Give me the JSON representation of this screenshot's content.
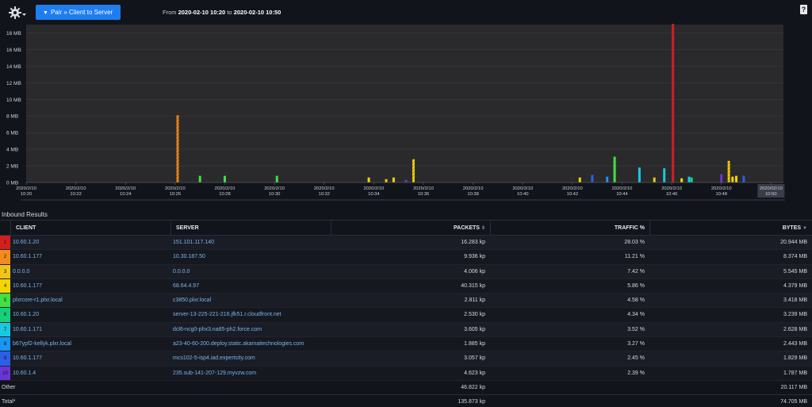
{
  "toolbar": {
    "gear_icon": "gear-icon",
    "pair_label": "Pair » Client to Server",
    "range_from_label": "From",
    "range_from": "2020-02-10 10:20",
    "range_to_label": "to",
    "range_to": "2020-02-10 10:50",
    "help_label": "?"
  },
  "chart_data": {
    "type": "bar",
    "title": "",
    "xlabel": "",
    "ylabel": "",
    "ylim": [
      0,
      19
    ],
    "yticks": [
      "18 MB",
      "16 MB",
      "14 MB",
      "12 MB",
      "10 MB",
      "8 MB",
      "6 MB",
      "4 MB",
      "2 MB",
      "0 MB"
    ],
    "ytick_values": [
      18,
      16,
      14,
      12,
      10,
      8,
      6,
      4,
      2,
      0
    ],
    "xlim": [
      0,
      30.5
    ],
    "xticks": [
      {
        "t": 0,
        "d": "2020/2/10",
        "h": "10:20"
      },
      {
        "t": 2,
        "d": "2020/2/10",
        "h": "10:22"
      },
      {
        "t": 4,
        "d": "2020/2/10",
        "h": "10:24"
      },
      {
        "t": 6,
        "d": "2020/2/10",
        "h": "10:26"
      },
      {
        "t": 8,
        "d": "2020/2/10",
        "h": "10:28"
      },
      {
        "t": 10,
        "d": "2020/2/10",
        "h": "10:30"
      },
      {
        "t": 12,
        "d": "2020/2/10",
        "h": "10:32"
      },
      {
        "t": 14,
        "d": "2020/2/10",
        "h": "10:34"
      },
      {
        "t": 16,
        "d": "2020/2/10",
        "h": "10:36"
      },
      {
        "t": 18,
        "d": "2020/2/10",
        "h": "10:38"
      },
      {
        "t": 20,
        "d": "2020/2/10",
        "h": "10:40"
      },
      {
        "t": 22,
        "d": "2020/2/10",
        "h": "10:42"
      },
      {
        "t": 24,
        "d": "2020/2/10",
        "h": "10:44"
      },
      {
        "t": 26,
        "d": "2020/2/10",
        "h": "10:46"
      },
      {
        "t": 28,
        "d": "2020/2/10",
        "h": "10:48"
      },
      {
        "t": 30,
        "d": "2020/02/10",
        "h": "10:50",
        "hl": true
      }
    ],
    "bars": [
      {
        "t": 6.1,
        "v": 8.1,
        "c": 2,
        "hatch": true
      },
      {
        "t": 7.0,
        "v": 0.8,
        "c": 5
      },
      {
        "t": 8.0,
        "v": 0.8,
        "c": 5
      },
      {
        "t": 10.1,
        "v": 0.8,
        "c": 5
      },
      {
        "t": 13.8,
        "v": 0.6,
        "c": 4
      },
      {
        "t": 14.5,
        "v": 0.4,
        "c": 3
      },
      {
        "t": 14.8,
        "v": 0.6,
        "c": 4
      },
      {
        "t": 15.3,
        "v": 0.3,
        "c": 10
      },
      {
        "t": 15.6,
        "v": 2.8,
        "c": 4,
        "hatch": true
      },
      {
        "t": 22.3,
        "v": 0.6,
        "c": 4
      },
      {
        "t": 22.8,
        "v": 0.9,
        "c": 9
      },
      {
        "t": 23.4,
        "v": 0.7,
        "c": 8
      },
      {
        "t": 23.7,
        "v": 3.1,
        "c": 5
      },
      {
        "t": 24.7,
        "v": 1.8,
        "c": 7
      },
      {
        "t": 25.3,
        "v": 0.6,
        "c": 3
      },
      {
        "t": 25.7,
        "v": 1.7,
        "c": 7
      },
      {
        "t": 26.05,
        "v": 19.5,
        "c": 1
      },
      {
        "t": 26.4,
        "v": 0.5,
        "c": 4
      },
      {
        "t": 26.7,
        "v": 0.7,
        "c": 7
      },
      {
        "t": 26.8,
        "v": 0.6,
        "c": 6
      },
      {
        "t": 28.0,
        "v": 1.0,
        "c": 10
      },
      {
        "t": 28.3,
        "v": 2.6,
        "c": 4,
        "hatch": true
      },
      {
        "t": 28.45,
        "v": 0.7,
        "c": 4
      },
      {
        "t": 28.6,
        "v": 0.8,
        "c": 4
      },
      {
        "t": 28.9,
        "v": 0.8,
        "c": 9
      }
    ]
  },
  "results": {
    "title": "Inbound Results",
    "columns": {
      "client": "CLIENT",
      "server": "SERVER",
      "packets": "PACKETS",
      "traffic": "TRAFFIC %",
      "bytes": "BYTES"
    },
    "sort_icons": {
      "packets": "sort-both-icon",
      "traffic": "sort-both-icon",
      "bytes": "sort-desc-icon"
    },
    "colors": [
      "#d11f1f",
      "#f28a1c",
      "#f0c419",
      "#f5d400",
      "#43e043",
      "#18d07a",
      "#18c9e0",
      "#1896f0",
      "#2c5ee8",
      "#6a35d6"
    ],
    "rows": [
      {
        "n": "1",
        "client": "10.60.1.20",
        "server": "151.101.117.140",
        "packets": "16.283 kp",
        "traffic": "28.03 %",
        "bytes": "20.944 MB"
      },
      {
        "n": "2",
        "client": "10.60.1.177",
        "server": "10.30.187.50",
        "packets": "9.936 kp",
        "traffic": "11.21 %",
        "bytes": "8.374 MB"
      },
      {
        "n": "3",
        "client": "0.0.0.0",
        "server": "0.0.0.0",
        "packets": "4.006 kp",
        "traffic": "7.42 %",
        "bytes": "5.545 MB"
      },
      {
        "n": "4",
        "client": "10.60.1.177",
        "server": "68.64.4.97",
        "packets": "40.315 kp",
        "traffic": "5.86 %",
        "bytes": "4.379 MB"
      },
      {
        "n": "5",
        "client": "plxrcore-r1.plxr.local",
        "server": "c3850.plxr.local",
        "packets": "2.811 kp",
        "traffic": "4.58 %",
        "bytes": "3.418 MB"
      },
      {
        "n": "6",
        "client": "10.60.1.20",
        "server": "server-13-225-221-216.jfk51.r.cloudfront.net",
        "packets": "2.530 kp",
        "traffic": "4.34 %",
        "bytes": "3.239 MB"
      },
      {
        "n": "7",
        "client": "10.60.1.171",
        "server": "dcl6-ncg0-phx3.na85-ph2.force.com",
        "packets": "3.605 kp",
        "traffic": "3.52 %",
        "bytes": "2.628 MB"
      },
      {
        "n": "8",
        "client": "b67ypf2-kellyk.plxr.local",
        "server": "a23-40-60-200.deploy.static.akamaitechnologies.com",
        "packets": "1.885 kp",
        "traffic": "3.27 %",
        "bytes": "2.443 MB"
      },
      {
        "n": "9",
        "client": "10.60.1.177",
        "server": "mcs102-5-isp4.iad.expertcity.com",
        "packets": "3.057 kp",
        "traffic": "2.45 %",
        "bytes": "1.829 MB"
      },
      {
        "n": "10",
        "client": "10.60.1.4",
        "server": "235.sub-141-207-129.myvzw.com",
        "packets": "4.623 kp",
        "traffic": "2.39 %",
        "bytes": "1.787 MB"
      }
    ],
    "other": {
      "label": "Other",
      "packets": "46.822 kp",
      "bytes": "20.117 MB"
    },
    "total": {
      "label": "Total*",
      "packets": "135.873 kp",
      "bytes": "74.705 MB"
    }
  }
}
